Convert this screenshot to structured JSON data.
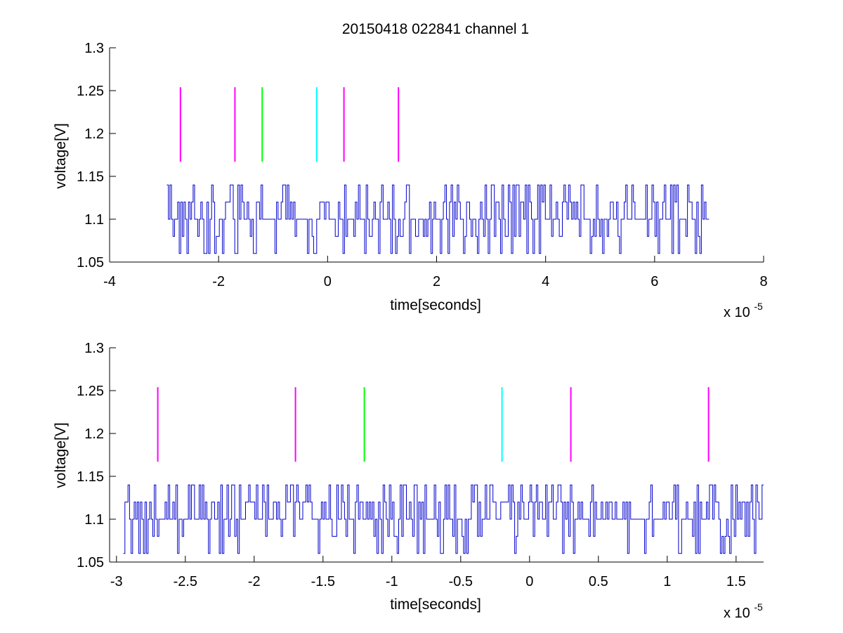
{
  "figure": {
    "title": "20150418 022841 channel 1",
    "background": "#ffffff",
    "trace_color": "#0000cc",
    "marker_colors": {
      "magenta": "#ff00ff",
      "green": "#00ff00",
      "cyan": "#00ffff"
    }
  },
  "chart_data": [
    {
      "type": "line",
      "title": "20150418 022841 channel 1",
      "xlabel": "time[seconds]",
      "ylabel": "voltage[V]",
      "x_multiplier_base": "x 10",
      "x_multiplier_exp": "-5",
      "x_scale": 1e-05,
      "xlim": [
        -4,
        8
      ],
      "ylim": [
        1.05,
        1.3
      ],
      "xticks": [
        -4,
        -2,
        0,
        2,
        4,
        6,
        8
      ],
      "xtick_labels": [
        "-4",
        "-2",
        "0",
        "2",
        "4",
        "6",
        "8"
      ],
      "yticks": [
        1.05,
        1.1,
        1.15,
        1.2,
        1.25,
        1.3
      ],
      "ytick_labels": [
        "1.05",
        "1.1",
        "1.15",
        "1.2",
        "1.25",
        "1.3"
      ],
      "grid": false,
      "series": [
        {
          "kind": "noisy-step-trace",
          "color": "#0000cc",
          "x_range": [
            -2.95,
            7.0
          ],
          "levels": [
            1.06,
            1.08,
            1.1,
            1.12,
            1.14
          ],
          "baseline": 1.1,
          "min": 1.06,
          "max": 1.14
        }
      ],
      "markers": [
        {
          "x": -2.7,
          "y_range": [
            1.167,
            1.254
          ],
          "color": "#ff00ff"
        },
        {
          "x": -1.7,
          "y_range": [
            1.167,
            1.254
          ],
          "color": "#ff00ff"
        },
        {
          "x": -1.2,
          "y_range": [
            1.167,
            1.254
          ],
          "color": "#00ff00"
        },
        {
          "x": -0.2,
          "y_range": [
            1.167,
            1.254
          ],
          "color": "#00ffff"
        },
        {
          "x": 0.3,
          "y_range": [
            1.167,
            1.254
          ],
          "color": "#ff00ff"
        },
        {
          "x": 1.3,
          "y_range": [
            1.167,
            1.254
          ],
          "color": "#ff00ff"
        }
      ]
    },
    {
      "type": "line",
      "title": "",
      "xlabel": "time[seconds]",
      "ylabel": "voltage[V]",
      "x_multiplier_base": "x 10",
      "x_multiplier_exp": "-5",
      "x_scale": 1e-05,
      "xlim": [
        -3.05,
        1.7
      ],
      "ylim": [
        1.05,
        1.3
      ],
      "xticks": [
        -3,
        -2.5,
        -2,
        -1.5,
        -1,
        -0.5,
        0,
        0.5,
        1,
        1.5
      ],
      "xtick_labels": [
        "-3",
        "-2.5",
        "-2",
        "-1.5",
        "-1",
        "-0.5",
        "0",
        "0.5",
        "1",
        "1.5"
      ],
      "yticks": [
        1.05,
        1.1,
        1.15,
        1.2,
        1.25,
        1.3
      ],
      "ytick_labels": [
        "1.05",
        "1.1",
        "1.15",
        "1.2",
        "1.25",
        "1.3"
      ],
      "grid": false,
      "series": [
        {
          "kind": "noisy-step-trace",
          "color": "#0000cc",
          "x_range": [
            -2.95,
            1.7
          ],
          "levels": [
            1.06,
            1.08,
            1.1,
            1.12,
            1.14
          ],
          "baseline": 1.1,
          "min": 1.06,
          "max": 1.14
        }
      ],
      "markers": [
        {
          "x": -2.7,
          "y_range": [
            1.167,
            1.254
          ],
          "color": "#ff00ff"
        },
        {
          "x": -1.7,
          "y_range": [
            1.167,
            1.254
          ],
          "color": "#ff00ff"
        },
        {
          "x": -1.2,
          "y_range": [
            1.167,
            1.254
          ],
          "color": "#00ff00"
        },
        {
          "x": -0.2,
          "y_range": [
            1.167,
            1.254
          ],
          "color": "#00ffff"
        },
        {
          "x": 0.3,
          "y_range": [
            1.167,
            1.254
          ],
          "color": "#ff00ff"
        },
        {
          "x": 1.3,
          "y_range": [
            1.167,
            1.254
          ],
          "color": "#ff00ff"
        }
      ]
    }
  ]
}
